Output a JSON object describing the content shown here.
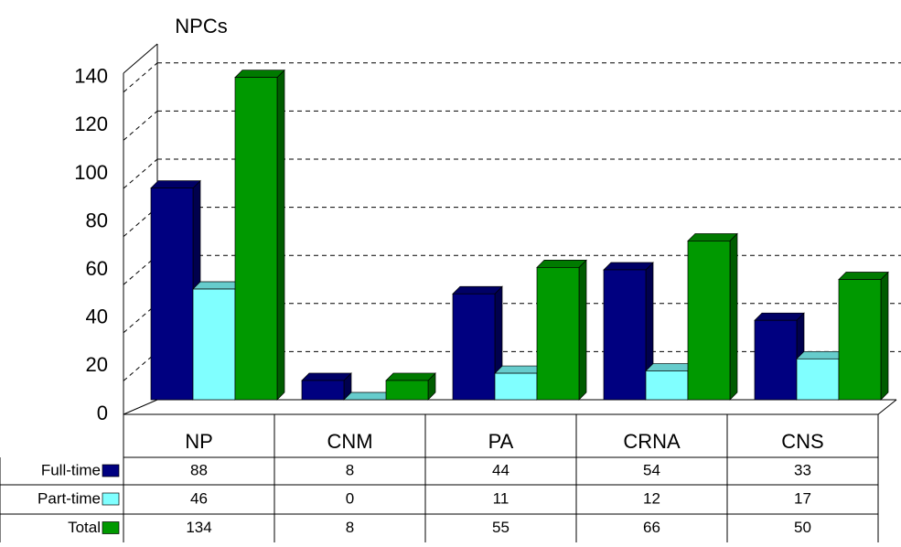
{
  "chart_data": {
    "type": "bar3d",
    "title": "NPCs",
    "categories": [
      "NP",
      "CNM",
      "PA",
      "CRNA",
      "CNS"
    ],
    "series": [
      {
        "name": "Full-time",
        "color": "#000080",
        "values": [
          88,
          8,
          44,
          54,
          33
        ]
      },
      {
        "name": "Part-time",
        "color": "#80ffff",
        "values": [
          46,
          0,
          11,
          12,
          17
        ]
      },
      {
        "name": "Total",
        "color": "#009900",
        "values": [
          134,
          8,
          55,
          66,
          50
        ]
      }
    ],
    "ylim": [
      0,
      140
    ],
    "yticks": [
      0,
      20,
      40,
      60,
      80,
      100,
      120,
      140
    ],
    "grid": true
  }
}
